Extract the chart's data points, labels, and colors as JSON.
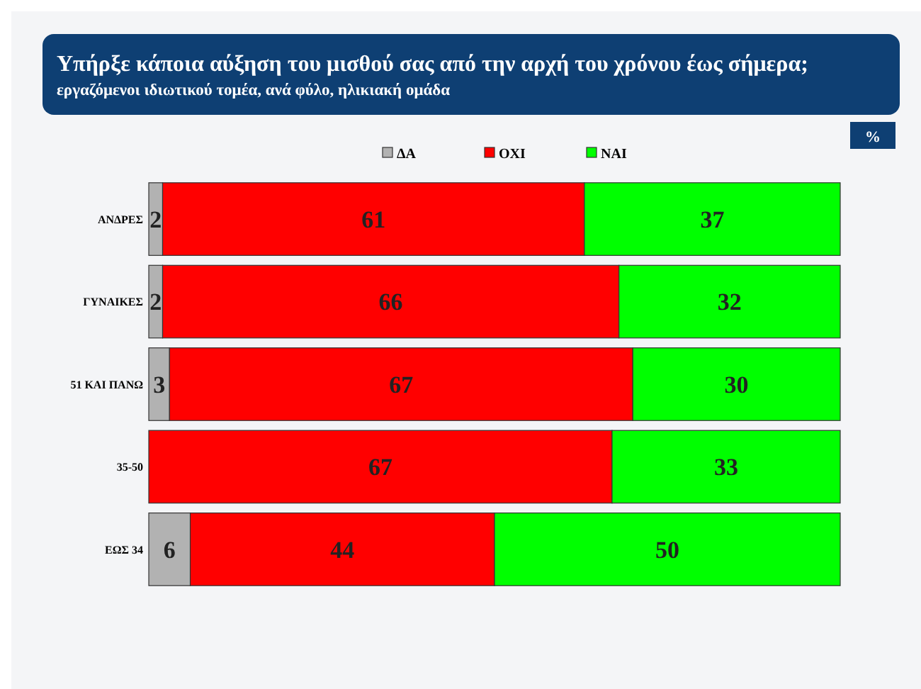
{
  "chart_data": {
    "type": "bar",
    "orientation": "horizontal",
    "stacked": true,
    "title": "Υπήρξε κάποια αύξηση του μισθού σας από την αρχή του χρόνου έως σήμερα;",
    "subtitle": "εργαζόμενοι ιδιωτικού τομέα, ανά φύλο, ηλικιακή ομάδα",
    "annotations": [
      "%"
    ],
    "categories": [
      "ΑΝΔΡΕΣ",
      "ΓΥΝΑΙΚΕΣ",
      "51 ΚΑΙ ΠΑΝΩ",
      "35-50",
      "ΕΩΣ 34"
    ],
    "series": [
      {
        "name": "ΔΑ",
        "color": "#b2b2b2",
        "values": [
          2,
          2,
          3,
          null,
          6
        ]
      },
      {
        "name": "ΟΧΙ",
        "color": "#ff0000",
        "values": [
          61,
          66,
          67,
          67,
          44
        ]
      },
      {
        "name": "ΝΑΙ",
        "color": "#00ff00",
        "values": [
          37,
          32,
          30,
          33,
          50
        ]
      }
    ],
    "xlim": [
      0,
      100
    ],
    "tick_labels": "y",
    "data_labels": true,
    "legend": "top",
    "grid": false
  }
}
